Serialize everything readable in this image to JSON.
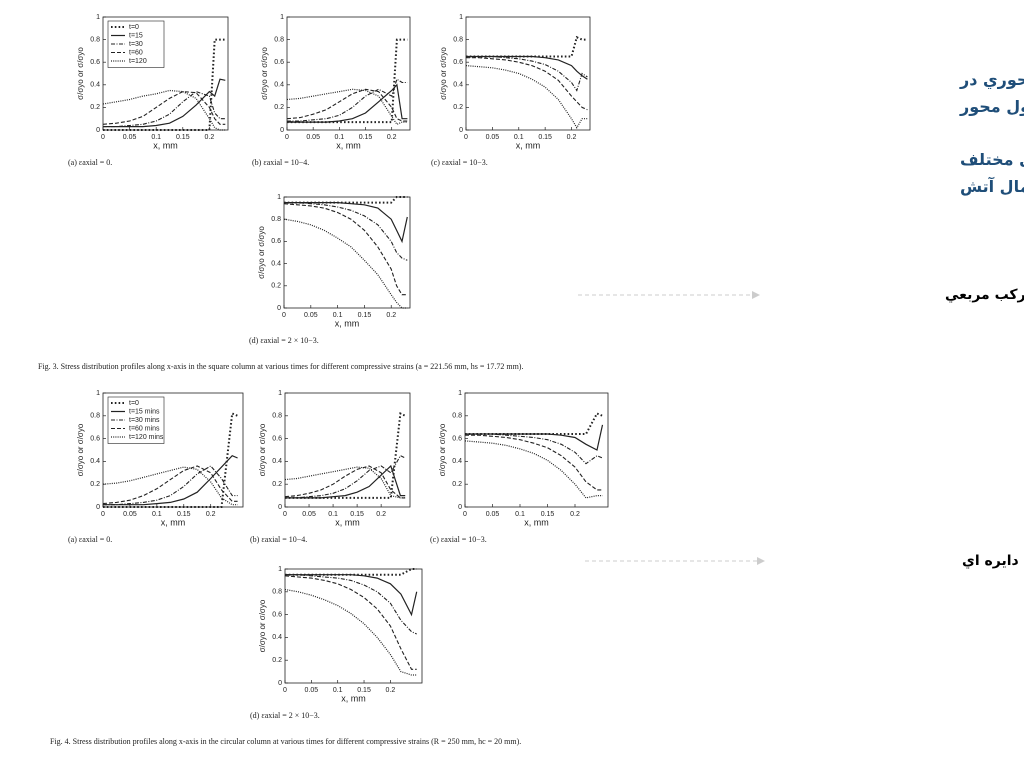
{
  "slide": {
    "heading": "X توزيع تنش محوري در طول محور",
    "subheading": "تحت مدت زمانهاي مختلف اعمال آتش",
    "label_square": "ستون مركب مربعي",
    "label_circular": "ستون مركب دايره اي"
  },
  "figures": [
    "Fig. 3.  Stress distribution profiles along x-axis in the square column at various times for different compressive strains (a = 221.56 mm, hs = 17.72 mm).",
    "Fig. 4.  Stress distribution profiles along x-axis in the circular column at various times for different compressive strains (R = 250 mm, hc = 20 mm)."
  ],
  "chart_data": [
    {
      "type": "line",
      "caption": "(a) εaxial = 0.",
      "x_label": "x, mm",
      "y_label": "σ/σyo or σ/σyo",
      "xlim": [
        0,
        0.235
      ],
      "ylim": [
        0,
        1
      ],
      "xticks": [
        0,
        0.05,
        0.1,
        0.15,
        0.2
      ],
      "yticks": [
        0,
        0.2,
        0.4,
        0.6,
        0.8,
        1
      ],
      "legend": "upper left",
      "x": [
        0,
        0.025,
        0.05,
        0.075,
        0.1,
        0.125,
        0.15,
        0.175,
        0.2,
        0.21,
        0.22,
        0.23
      ],
      "series": [
        {
          "name": "t=0",
          "color": "#222",
          "style": "dots",
          "values": [
            0,
            0,
            0,
            0,
            0,
            0,
            0,
            0,
            0,
            0.8,
            0.8,
            0.8
          ]
        },
        {
          "name": "t=15",
          "color": "#222",
          "style": "solid",
          "values": [
            0.03,
            0.03,
            0.03,
            0.03,
            0.04,
            0.06,
            0.12,
            0.22,
            0.34,
            0.3,
            0.45,
            0.44
          ]
        },
        {
          "name": "t=30",
          "color": "#222",
          "style": "dashdot",
          "values": [
            0.03,
            0.03,
            0.04,
            0.05,
            0.08,
            0.14,
            0.25,
            0.34,
            0.3,
            0.15,
            0.1,
            0.1
          ]
        },
        {
          "name": "t=60",
          "color": "#222",
          "style": "dashed",
          "values": [
            0.05,
            0.06,
            0.08,
            0.12,
            0.2,
            0.28,
            0.34,
            0.33,
            0.2,
            0.1,
            0.05,
            0.05
          ]
        },
        {
          "name": "t=120",
          "color": "#222",
          "style": "dotted",
          "values": [
            0.23,
            0.25,
            0.27,
            0.3,
            0.32,
            0.35,
            0.34,
            0.28,
            0.1,
            0.02,
            0,
            0
          ]
        }
      ]
    },
    {
      "type": "line",
      "caption": "(b) εaxial = 10−4.",
      "x_label": "x, mm",
      "y_label": "σ/σyo or σ/σyo",
      "xlim": [
        0,
        0.235
      ],
      "ylim": [
        0,
        1
      ],
      "xticks": [
        0,
        0.05,
        0.1,
        0.15,
        0.2
      ],
      "yticks": [
        0,
        0.2,
        0.4,
        0.6,
        0.8,
        1
      ],
      "x": [
        0,
        0.025,
        0.05,
        0.075,
        0.1,
        0.125,
        0.15,
        0.175,
        0.2,
        0.21,
        0.22,
        0.23
      ],
      "series": [
        {
          "color": "#222",
          "style": "dots",
          "values": [
            0.07,
            0.07,
            0.07,
            0.07,
            0.07,
            0.07,
            0.07,
            0.07,
            0.07,
            0.8,
            0.8,
            0.8
          ]
        },
        {
          "color": "#222",
          "style": "solid",
          "values": [
            0.07,
            0.07,
            0.07,
            0.07,
            0.08,
            0.1,
            0.15,
            0.25,
            0.35,
            0.4,
            0.1,
            0.1
          ]
        },
        {
          "color": "#222",
          "style": "dashdot",
          "values": [
            0.08,
            0.08,
            0.09,
            0.1,
            0.13,
            0.2,
            0.3,
            0.36,
            0.3,
            0.45,
            0.42,
            0.42
          ]
        },
        {
          "color": "#222",
          "style": "dashed",
          "values": [
            0.1,
            0.11,
            0.14,
            0.18,
            0.25,
            0.32,
            0.36,
            0.34,
            0.2,
            0.1,
            0.08,
            0.08
          ]
        },
        {
          "color": "#222",
          "style": "dotted",
          "values": [
            0.27,
            0.28,
            0.3,
            0.32,
            0.34,
            0.36,
            0.35,
            0.3,
            0.12,
            0.05,
            0.07,
            0.07
          ]
        }
      ]
    },
    {
      "type": "line",
      "caption": "(c) εaxial = 10−3.",
      "x_label": "x, mm",
      "y_label": "σ/σyo or σ/σyo",
      "xlim": [
        0,
        0.235
      ],
      "ylim": [
        0,
        1
      ],
      "xticks": [
        0,
        0.05,
        0.1,
        0.15,
        0.2
      ],
      "yticks": [
        0,
        0.2,
        0.4,
        0.6,
        0.8,
        1
      ],
      "x": [
        0,
        0.025,
        0.05,
        0.075,
        0.1,
        0.125,
        0.15,
        0.175,
        0.2,
        0.21,
        0.22,
        0.23
      ],
      "series": [
        {
          "color": "#222",
          "style": "dots",
          "values": [
            0.65,
            0.65,
            0.65,
            0.65,
            0.65,
            0.65,
            0.65,
            0.65,
            0.65,
            0.82,
            0.8,
            0.8
          ]
        },
        {
          "color": "#222",
          "style": "solid",
          "values": [
            0.65,
            0.65,
            0.65,
            0.65,
            0.65,
            0.65,
            0.64,
            0.62,
            0.57,
            0.52,
            0.48,
            0.45
          ]
        },
        {
          "color": "#222",
          "style": "dashdot",
          "values": [
            0.65,
            0.65,
            0.65,
            0.64,
            0.63,
            0.61,
            0.58,
            0.52,
            0.42,
            0.35,
            0.5,
            0.47
          ]
        },
        {
          "color": "#222",
          "style": "dashed",
          "values": [
            0.64,
            0.64,
            0.63,
            0.62,
            0.6,
            0.57,
            0.52,
            0.44,
            0.3,
            0.25,
            0.2,
            0.18
          ]
        },
        {
          "color": "#222",
          "style": "dotted",
          "values": [
            0.57,
            0.56,
            0.55,
            0.53,
            0.5,
            0.45,
            0.38,
            0.27,
            0.1,
            0.02,
            0.1,
            0.1
          ]
        }
      ]
    },
    {
      "type": "line",
      "caption": "(d) εaxial = 2 × 10−3.",
      "x_label": "x, mm",
      "y_label": "σ/σyo or σ/σyo",
      "xlim": [
        0,
        0.235
      ],
      "ylim": [
        0,
        1
      ],
      "xticks": [
        0,
        0.05,
        0.1,
        0.15,
        0.2
      ],
      "yticks": [
        0,
        0.2,
        0.4,
        0.6,
        0.8,
        1
      ],
      "x": [
        0,
        0.025,
        0.05,
        0.075,
        0.1,
        0.125,
        0.15,
        0.175,
        0.2,
        0.21,
        0.22,
        0.23
      ],
      "series": [
        {
          "color": "#222",
          "style": "dots",
          "values": [
            0.95,
            0.95,
            0.95,
            0.95,
            0.95,
            0.95,
            0.95,
            0.95,
            0.95,
            1,
            1,
            1
          ]
        },
        {
          "color": "#222",
          "style": "solid",
          "values": [
            0.95,
            0.95,
            0.95,
            0.95,
            0.95,
            0.94,
            0.93,
            0.9,
            0.8,
            0.7,
            0.6,
            0.82
          ]
        },
        {
          "color": "#222",
          "style": "dashdot",
          "values": [
            0.95,
            0.95,
            0.94,
            0.93,
            0.91,
            0.88,
            0.83,
            0.75,
            0.6,
            0.5,
            0.45,
            0.43
          ]
        },
        {
          "color": "#222",
          "style": "dashed",
          "values": [
            0.94,
            0.93,
            0.92,
            0.9,
            0.86,
            0.8,
            0.7,
            0.55,
            0.35,
            0.2,
            0.12,
            0.12
          ]
        },
        {
          "color": "#222",
          "style": "dotted",
          "values": [
            0.8,
            0.78,
            0.75,
            0.7,
            0.63,
            0.55,
            0.43,
            0.3,
            0.12,
            0.05,
            0,
            0
          ]
        }
      ]
    },
    {
      "type": "line",
      "caption": "(a) εaxial = 0.",
      "x_label": "x, mm",
      "y_label": "σ/σyo or σ/σyo",
      "xlim": [
        0,
        0.26
      ],
      "ylim": [
        0,
        1
      ],
      "xticks": [
        0,
        0.05,
        0.1,
        0.15,
        0.2
      ],
      "yticks": [
        0,
        0.2,
        0.4,
        0.6,
        0.8,
        1
      ],
      "legend": "upper left",
      "x": [
        0,
        0.025,
        0.05,
        0.075,
        0.1,
        0.125,
        0.15,
        0.175,
        0.2,
        0.22,
        0.24,
        0.25
      ],
      "series": [
        {
          "name": "t=0",
          "color": "#222",
          "style": "dots",
          "values": [
            0,
            0,
            0,
            0,
            0,
            0,
            0,
            0,
            0,
            0,
            0.82,
            0.8
          ]
        },
        {
          "name": "t=15 mins",
          "color": "#222",
          "style": "solid",
          "values": [
            0.02,
            0.02,
            0.02,
            0.02,
            0.03,
            0.04,
            0.07,
            0.13,
            0.25,
            0.35,
            0.45,
            0.43
          ]
        },
        {
          "name": "t=30 mins",
          "color": "#222",
          "style": "dashdot",
          "values": [
            0.02,
            0.02,
            0.03,
            0.04,
            0.06,
            0.1,
            0.18,
            0.29,
            0.36,
            0.25,
            0.1,
            0.1
          ]
        },
        {
          "name": "t=60 mins",
          "color": "#222",
          "style": "dashed",
          "values": [
            0.03,
            0.04,
            0.06,
            0.1,
            0.16,
            0.24,
            0.32,
            0.36,
            0.3,
            0.15,
            0.05,
            0.05
          ]
        },
        {
          "name": "t=120 mins",
          "color": "#222",
          "style": "dotted",
          "values": [
            0.2,
            0.21,
            0.23,
            0.26,
            0.29,
            0.32,
            0.35,
            0.33,
            0.22,
            0.08,
            0.02,
            0.02
          ]
        }
      ]
    },
    {
      "type": "line",
      "caption": "(b) εaxial = 10−4.",
      "x_label": "x, mm",
      "y_label": "σ/σyo or σ/σyo",
      "xlim": [
        0,
        0.26
      ],
      "ylim": [
        0,
        1
      ],
      "xticks": [
        0,
        0.05,
        0.1,
        0.15,
        0.2
      ],
      "yticks": [
        0,
        0.2,
        0.4,
        0.6,
        0.8,
        1
      ],
      "x": [
        0,
        0.025,
        0.05,
        0.075,
        0.1,
        0.125,
        0.15,
        0.175,
        0.2,
        0.22,
        0.24,
        0.25
      ],
      "series": [
        {
          "color": "#222",
          "style": "dots",
          "values": [
            0.08,
            0.08,
            0.08,
            0.08,
            0.08,
            0.08,
            0.08,
            0.08,
            0.08,
            0.08,
            0.82,
            0.8
          ]
        },
        {
          "color": "#222",
          "style": "solid",
          "values": [
            0.08,
            0.08,
            0.08,
            0.08,
            0.09,
            0.1,
            0.13,
            0.18,
            0.28,
            0.36,
            0.1,
            0.1
          ]
        },
        {
          "color": "#222",
          "style": "dashdot",
          "values": [
            0.08,
            0.08,
            0.09,
            0.1,
            0.12,
            0.16,
            0.23,
            0.32,
            0.36,
            0.3,
            0.45,
            0.43
          ]
        },
        {
          "color": "#222",
          "style": "dashed",
          "values": [
            0.09,
            0.1,
            0.12,
            0.15,
            0.2,
            0.27,
            0.33,
            0.36,
            0.3,
            0.15,
            0.08,
            0.08
          ]
        },
        {
          "color": "#222",
          "style": "dotted",
          "values": [
            0.24,
            0.25,
            0.27,
            0.29,
            0.31,
            0.33,
            0.35,
            0.34,
            0.25,
            0.1,
            0.08,
            0.08
          ]
        }
      ]
    },
    {
      "type": "line",
      "caption": "(c) εaxial = 10−3.",
      "x_label": "x, mm",
      "y_label": "σ/σyo or σ/σyo",
      "xlim": [
        0,
        0.26
      ],
      "ylim": [
        0,
        1
      ],
      "xticks": [
        0,
        0.05,
        0.1,
        0.15,
        0.2
      ],
      "yticks": [
        0,
        0.2,
        0.4,
        0.6,
        0.8,
        1
      ],
      "x": [
        0,
        0.025,
        0.05,
        0.075,
        0.1,
        0.125,
        0.15,
        0.175,
        0.2,
        0.22,
        0.24,
        0.25
      ],
      "series": [
        {
          "color": "#222",
          "style": "dots",
          "values": [
            0.64,
            0.64,
            0.64,
            0.64,
            0.64,
            0.64,
            0.64,
            0.64,
            0.64,
            0.64,
            0.82,
            0.8
          ]
        },
        {
          "color": "#222",
          "style": "solid",
          "values": [
            0.64,
            0.64,
            0.64,
            0.64,
            0.64,
            0.64,
            0.64,
            0.63,
            0.61,
            0.55,
            0.5,
            0.72
          ]
        },
        {
          "color": "#222",
          "style": "dashdot",
          "values": [
            0.64,
            0.64,
            0.64,
            0.63,
            0.62,
            0.61,
            0.59,
            0.55,
            0.48,
            0.38,
            0.45,
            0.43
          ]
        },
        {
          "color": "#222",
          "style": "dashed",
          "values": [
            0.63,
            0.63,
            0.62,
            0.61,
            0.59,
            0.56,
            0.52,
            0.45,
            0.35,
            0.22,
            0.15,
            0.15
          ]
        },
        {
          "color": "#222",
          "style": "dotted",
          "values": [
            0.58,
            0.57,
            0.56,
            0.54,
            0.51,
            0.47,
            0.41,
            0.32,
            0.2,
            0.08,
            0.1,
            0.1
          ]
        }
      ]
    },
    {
      "type": "line",
      "caption": "(d) εaxial = 2 × 10−3.",
      "x_label": "x, mm",
      "y_label": "σ/σyo or σ/σyo",
      "xlim": [
        0,
        0.26
      ],
      "ylim": [
        0,
        1
      ],
      "xticks": [
        0,
        0.05,
        0.1,
        0.15,
        0.2
      ],
      "yticks": [
        0,
        0.2,
        0.4,
        0.6,
        0.8,
        1
      ],
      "x": [
        0,
        0.025,
        0.05,
        0.075,
        0.1,
        0.125,
        0.15,
        0.175,
        0.2,
        0.22,
        0.24,
        0.25
      ],
      "series": [
        {
          "color": "#222",
          "style": "dots",
          "values": [
            0.95,
            0.95,
            0.95,
            0.95,
            0.95,
            0.95,
            0.95,
            0.95,
            0.95,
            0.95,
            1,
            1
          ]
        },
        {
          "color": "#222",
          "style": "solid",
          "values": [
            0.95,
            0.95,
            0.95,
            0.95,
            0.95,
            0.95,
            0.94,
            0.92,
            0.87,
            0.78,
            0.6,
            0.8
          ]
        },
        {
          "color": "#222",
          "style": "dashdot",
          "values": [
            0.95,
            0.95,
            0.94,
            0.93,
            0.92,
            0.9,
            0.86,
            0.8,
            0.7,
            0.55,
            0.45,
            0.43
          ]
        },
        {
          "color": "#222",
          "style": "dashed",
          "values": [
            0.94,
            0.93,
            0.92,
            0.9,
            0.87,
            0.82,
            0.75,
            0.65,
            0.5,
            0.3,
            0.12,
            0.12
          ]
        },
        {
          "color": "#222",
          "style": "dotted",
          "values": [
            0.82,
            0.8,
            0.77,
            0.73,
            0.68,
            0.61,
            0.52,
            0.4,
            0.25,
            0.1,
            0.07,
            0.07
          ]
        }
      ]
    }
  ]
}
